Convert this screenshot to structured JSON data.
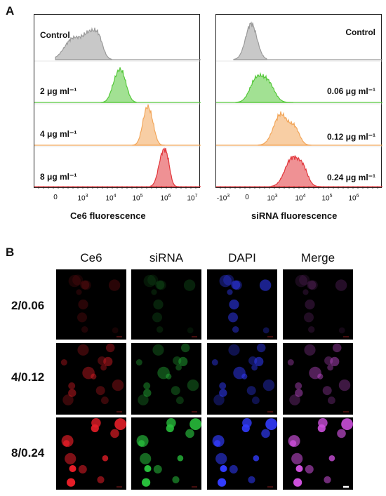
{
  "panel_a": {
    "letter": "A",
    "left": {
      "xlabel": "Ce6 fluorescence",
      "ticks": [
        {
          "base": "0",
          "exp": ""
        },
        {
          "base": "10",
          "exp": "3"
        },
        {
          "base": "10",
          "exp": "4"
        },
        {
          "base": "10",
          "exp": "5"
        },
        {
          "base": "10",
          "exp": "6"
        },
        {
          "base": "10",
          "exp": "7"
        }
      ],
      "rows": [
        {
          "label": "Control",
          "color": "#9a9a9a"
        },
        {
          "label": "2 μg ml⁻¹",
          "color": "#55c83a"
        },
        {
          "label": "4 μg ml⁻¹",
          "color": "#f2a65a"
        },
        {
          "label": "8 μg ml⁻¹",
          "color": "#e2373c"
        }
      ]
    },
    "right": {
      "xlabel": "siRNA fluorescence",
      "ticks": [
        {
          "base": "-10",
          "exp": "3"
        },
        {
          "base": "0",
          "exp": ""
        },
        {
          "base": "10",
          "exp": "3"
        },
        {
          "base": "10",
          "exp": "4"
        },
        {
          "base": "10",
          "exp": "5"
        },
        {
          "base": "10",
          "exp": "6"
        }
      ],
      "rows": [
        {
          "label": "Control",
          "color": "#9a9a9a"
        },
        {
          "label": "0.06 μg ml⁻¹",
          "color": "#55c83a"
        },
        {
          "label": "0.12 μg ml⁻¹",
          "color": "#f2a65a"
        },
        {
          "label": "0.24 μg ml⁻¹",
          "color": "#e2373c"
        }
      ]
    }
  },
  "panel_b": {
    "letter": "B",
    "columns": [
      "Ce6",
      "siRNA",
      "DAPI",
      "Merge"
    ],
    "rows": [
      "2/0.06",
      "4/0.12",
      "8/0.24"
    ]
  }
}
